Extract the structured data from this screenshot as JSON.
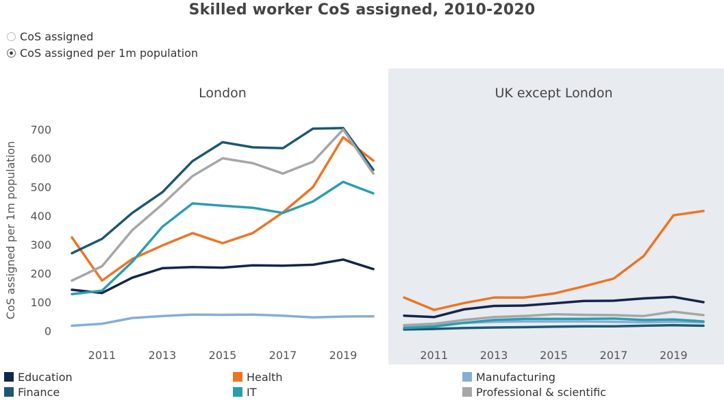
{
  "title": "Skilled worker CoS assigned, 2010-2020",
  "toggle": {
    "options": [
      {
        "label": "CoS assigned",
        "selected": false
      },
      {
        "label": "CoS assigned per 1m population",
        "selected": true
      }
    ]
  },
  "chart_data": {
    "type": "line",
    "ylabel": "CoS assigned per 1m population",
    "ylim": [
      0,
      700
    ],
    "yticks": [
      "0",
      "100",
      "200",
      "300",
      "400",
      "500",
      "600",
      "700"
    ],
    "xticks": [
      "2011",
      "2013",
      "2015",
      "2017",
      "2019"
    ],
    "x": [
      2010,
      2011,
      2012,
      2013,
      2014,
      2015,
      2016,
      2017,
      2018,
      2019,
      2020
    ],
    "panels": [
      {
        "title": "London",
        "shaded": false,
        "series": [
          {
            "name": "Education",
            "color": "#14254a",
            "values": [
              143,
              132,
              185,
              218,
              222,
              220,
              228,
              227,
              230,
              248,
              215
            ]
          },
          {
            "name": "Health",
            "color": "#ed7424",
            "values": [
              325,
              175,
              250,
              297,
              340,
              305,
              340,
              412,
              500,
              673,
              592
            ]
          },
          {
            "name": "Manufacturing",
            "color": "#85aed6",
            "values": [
              18,
              25,
              45,
              52,
              57,
              56,
              57,
              53,
              47,
              50,
              51
            ]
          },
          {
            "name": "Finance",
            "color": "#1c5870",
            "values": [
              270,
              320,
              410,
              482,
              590,
              656,
              638,
              635,
              703,
              705,
              560
            ]
          },
          {
            "name": "IT",
            "color": "#2a9db1",
            "values": [
              128,
              140,
              240,
              362,
              443,
              435,
              428,
              410,
              450,
              518,
              478
            ]
          },
          {
            "name": "Professional & scientific",
            "color": "#a6a6a6",
            "values": [
              175,
              225,
              350,
              440,
              538,
              600,
              583,
              547,
              588,
              700,
              547
            ]
          }
        ]
      },
      {
        "title": "UK except London",
        "shaded": true,
        "series": [
          {
            "name": "Education",
            "color": "#14254a",
            "values": [
              53,
              48,
              75,
              87,
              88,
              96,
              104,
              105,
              113,
              118,
              100
            ]
          },
          {
            "name": "Health",
            "color": "#ed7424",
            "values": [
              116,
              73,
              97,
              116,
              116,
              130,
              155,
              182,
              260,
              402,
              417
            ]
          },
          {
            "name": "Manufacturing",
            "color": "#85aed6",
            "values": [
              18,
              20,
              28,
              32,
              33,
              33,
              33,
              32,
              30,
              32,
              30
            ]
          },
          {
            "name": "Finance",
            "color": "#1c5870",
            "values": [
              5,
              7,
              10,
              12,
              13,
              15,
              16,
              16,
              18,
              20,
              18
            ]
          },
          {
            "name": "IT",
            "color": "#2a9db1",
            "values": [
              10,
              15,
              28,
              38,
              42,
              42,
              42,
              43,
              38,
              40,
              33
            ]
          },
          {
            "name": "Professional & scientific",
            "color": "#a6a6a6",
            "values": [
              20,
              25,
              38,
              48,
              52,
              58,
              56,
              55,
              52,
              67,
              55
            ]
          }
        ]
      }
    ],
    "legend": [
      {
        "name": "Education",
        "color": "#14254a"
      },
      {
        "name": "Finance",
        "color": "#1c5870"
      },
      {
        "name": "Health",
        "color": "#ed7424"
      },
      {
        "name": "IT",
        "color": "#2a9db1"
      },
      {
        "name": "Manufacturing",
        "color": "#85aed6"
      },
      {
        "name": "Professional & scientific",
        "color": "#a6a6a6"
      }
    ],
    "legend_position": "bottom",
    "grid": false
  }
}
